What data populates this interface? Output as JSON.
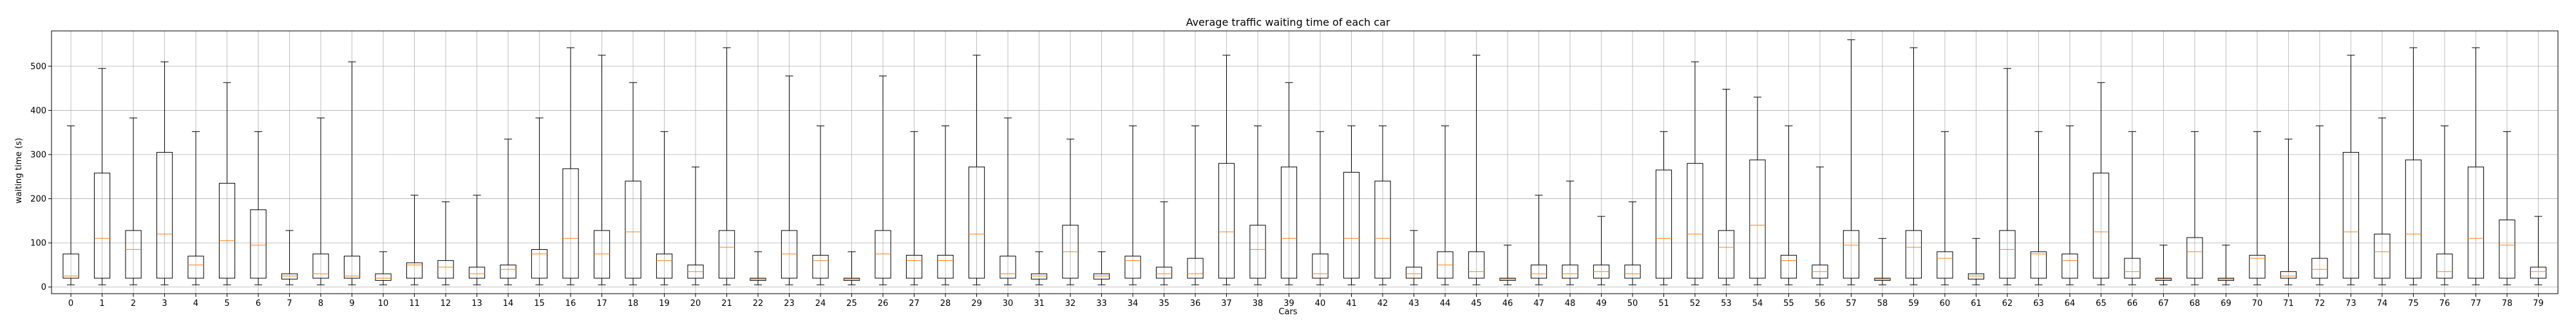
{
  "chart_data": {
    "type": "boxplot",
    "title": "Average traffic waiting time of each car",
    "xlabel": "Cars",
    "ylabel": "waiting time (s)",
    "ylim": [
      -15,
      580
    ],
    "yticks": [
      0,
      100,
      200,
      300,
      400,
      500
    ],
    "grid": true,
    "colors": {
      "box": "#000000",
      "median": "#ff7f0e",
      "grid": "#b0b0b0"
    },
    "boxes": [
      {
        "label": "0",
        "whislo": 5,
        "q1": 20,
        "med": 25,
        "q3": 75,
        "whishi": 365
      },
      {
        "label": "1",
        "whislo": 5,
        "q1": 20,
        "med": 110,
        "q3": 258,
        "whishi": 495
      },
      {
        "label": "2",
        "whislo": 5,
        "q1": 20,
        "med": 85,
        "q3": 128,
        "whishi": 383
      },
      {
        "label": "3",
        "whislo": 5,
        "q1": 20,
        "med": 120,
        "q3": 305,
        "whishi": 510
      },
      {
        "label": "4",
        "whislo": 5,
        "q1": 20,
        "med": 50,
        "q3": 70,
        "whishi": 352
      },
      {
        "label": "5",
        "whislo": 5,
        "q1": 20,
        "med": 105,
        "q3": 235,
        "whishi": 463
      },
      {
        "label": "6",
        "whislo": 5,
        "q1": 20,
        "med": 95,
        "q3": 175,
        "whishi": 352
      },
      {
        "label": "7",
        "whislo": 5,
        "q1": 18,
        "med": 25,
        "q3": 30,
        "whishi": 128
      },
      {
        "label": "8",
        "whislo": 5,
        "q1": 20,
        "med": 30,
        "q3": 75,
        "whishi": 383
      },
      {
        "label": "9",
        "whislo": 5,
        "q1": 20,
        "med": 25,
        "q3": 70,
        "whishi": 510
      },
      {
        "label": "10",
        "whislo": 5,
        "q1": 15,
        "med": 20,
        "q3": 30,
        "whishi": 80
      },
      {
        "label": "11",
        "whislo": 5,
        "q1": 20,
        "med": 50,
        "q3": 55,
        "whishi": 208
      },
      {
        "label": "12",
        "whislo": 5,
        "q1": 20,
        "med": 45,
        "q3": 60,
        "whishi": 193
      },
      {
        "label": "13",
        "whislo": 5,
        "q1": 20,
        "med": 30,
        "q3": 45,
        "whishi": 208
      },
      {
        "label": "14",
        "whislo": 5,
        "q1": 20,
        "med": 40,
        "q3": 50,
        "whishi": 335
      },
      {
        "label": "15",
        "whislo": 5,
        "q1": 20,
        "med": 75,
        "q3": 85,
        "whishi": 383
      },
      {
        "label": "16",
        "whislo": 5,
        "q1": 20,
        "med": 110,
        "q3": 268,
        "whishi": 542
      },
      {
        "label": "17",
        "whislo": 5,
        "q1": 20,
        "med": 75,
        "q3": 128,
        "whishi": 525
      },
      {
        "label": "18",
        "whislo": 5,
        "q1": 20,
        "med": 125,
        "q3": 240,
        "whishi": 463
      },
      {
        "label": "19",
        "whislo": 5,
        "q1": 20,
        "med": 60,
        "q3": 75,
        "whishi": 352
      },
      {
        "label": "20",
        "whislo": 5,
        "q1": 20,
        "med": 35,
        "q3": 50,
        "whishi": 272
      },
      {
        "label": "21",
        "whislo": 5,
        "q1": 20,
        "med": 90,
        "q3": 128,
        "whishi": 542
      },
      {
        "label": "22",
        "whislo": 5,
        "q1": 15,
        "med": 18,
        "q3": 20,
        "whishi": 80
      },
      {
        "label": "23",
        "whislo": 5,
        "q1": 20,
        "med": 75,
        "q3": 128,
        "whishi": 478
      },
      {
        "label": "24",
        "whislo": 5,
        "q1": 20,
        "med": 60,
        "q3": 72,
        "whishi": 365
      },
      {
        "label": "25",
        "whislo": 5,
        "q1": 15,
        "med": 18,
        "q3": 20,
        "whishi": 80
      },
      {
        "label": "26",
        "whislo": 5,
        "q1": 20,
        "med": 75,
        "q3": 128,
        "whishi": 478
      },
      {
        "label": "27",
        "whislo": 5,
        "q1": 20,
        "med": 60,
        "q3": 72,
        "whishi": 352
      },
      {
        "label": "28",
        "whislo": 5,
        "q1": 20,
        "med": 60,
        "q3": 72,
        "whishi": 365
      },
      {
        "label": "29",
        "whislo": 5,
        "q1": 20,
        "med": 120,
        "q3": 272,
        "whishi": 525
      },
      {
        "label": "30",
        "whislo": 5,
        "q1": 20,
        "med": 30,
        "q3": 70,
        "whishi": 383
      },
      {
        "label": "31",
        "whislo": 5,
        "q1": 18,
        "med": 25,
        "q3": 30,
        "whishi": 80
      },
      {
        "label": "32",
        "whislo": 5,
        "q1": 20,
        "med": 80,
        "q3": 140,
        "whishi": 335
      },
      {
        "label": "33",
        "whislo": 5,
        "q1": 18,
        "med": 25,
        "q3": 30,
        "whishi": 80
      },
      {
        "label": "34",
        "whislo": 5,
        "q1": 20,
        "med": 60,
        "q3": 70,
        "whishi": 365
      },
      {
        "label": "35",
        "whislo": 5,
        "q1": 20,
        "med": 30,
        "q3": 45,
        "whishi": 193
      },
      {
        "label": "36",
        "whislo": 5,
        "q1": 20,
        "med": 30,
        "q3": 65,
        "whishi": 365
      },
      {
        "label": "37",
        "whislo": 5,
        "q1": 20,
        "med": 125,
        "q3": 280,
        "whishi": 525
      },
      {
        "label": "38",
        "whislo": 5,
        "q1": 20,
        "med": 85,
        "q3": 140,
        "whishi": 365
      },
      {
        "label": "39",
        "whislo": 5,
        "q1": 20,
        "med": 110,
        "q3": 272,
        "whishi": 463
      },
      {
        "label": "40",
        "whislo": 5,
        "q1": 20,
        "med": 30,
        "q3": 75,
        "whishi": 352
      },
      {
        "label": "41",
        "whislo": 5,
        "q1": 20,
        "med": 110,
        "q3": 260,
        "whishi": 365
      },
      {
        "label": "42",
        "whislo": 5,
        "q1": 20,
        "med": 110,
        "q3": 240,
        "whishi": 365
      },
      {
        "label": "43",
        "whislo": 5,
        "q1": 20,
        "med": 30,
        "q3": 45,
        "whishi": 128
      },
      {
        "label": "44",
        "whislo": 5,
        "q1": 20,
        "med": 50,
        "q3": 80,
        "whishi": 365
      },
      {
        "label": "45",
        "whislo": 5,
        "q1": 20,
        "med": 35,
        "q3": 80,
        "whishi": 525
      },
      {
        "label": "46",
        "whislo": 5,
        "q1": 15,
        "med": 18,
        "q3": 20,
        "whishi": 95
      },
      {
        "label": "47",
        "whislo": 5,
        "q1": 20,
        "med": 30,
        "q3": 50,
        "whishi": 208
      },
      {
        "label": "48",
        "whislo": 5,
        "q1": 20,
        "med": 30,
        "q3": 50,
        "whishi": 240
      },
      {
        "label": "49",
        "whislo": 5,
        "q1": 20,
        "med": 35,
        "q3": 50,
        "whishi": 160
      },
      {
        "label": "50",
        "whislo": 5,
        "q1": 20,
        "med": 30,
        "q3": 50,
        "whishi": 193
      },
      {
        "label": "51",
        "whislo": 5,
        "q1": 20,
        "med": 110,
        "q3": 265,
        "whishi": 352
      },
      {
        "label": "52",
        "whislo": 5,
        "q1": 20,
        "med": 120,
        "q3": 280,
        "whishi": 510
      },
      {
        "label": "53",
        "whislo": 5,
        "q1": 20,
        "med": 90,
        "q3": 128,
        "whishi": 448
      },
      {
        "label": "54",
        "whislo": 5,
        "q1": 20,
        "med": 140,
        "q3": 288,
        "whishi": 430
      },
      {
        "label": "55",
        "whislo": 5,
        "q1": 20,
        "med": 60,
        "q3": 72,
        "whishi": 365
      },
      {
        "label": "56",
        "whislo": 5,
        "q1": 20,
        "med": 35,
        "q3": 50,
        "whishi": 272
      },
      {
        "label": "57",
        "whislo": 5,
        "q1": 20,
        "med": 95,
        "q3": 128,
        "whishi": 560
      },
      {
        "label": "58",
        "whislo": 5,
        "q1": 15,
        "med": 18,
        "q3": 20,
        "whishi": 110
      },
      {
        "label": "59",
        "whislo": 5,
        "q1": 20,
        "med": 90,
        "q3": 128,
        "whishi": 542
      },
      {
        "label": "60",
        "whislo": 5,
        "q1": 20,
        "med": 65,
        "q3": 80,
        "whishi": 352
      },
      {
        "label": "61",
        "whislo": 5,
        "q1": 18,
        "med": 25,
        "q3": 30,
        "whishi": 110
      },
      {
        "label": "62",
        "whislo": 5,
        "q1": 20,
        "med": 85,
        "q3": 128,
        "whishi": 495
      },
      {
        "label": "63",
        "whislo": 5,
        "q1": 20,
        "med": 75,
        "q3": 80,
        "whishi": 352
      },
      {
        "label": "64",
        "whislo": 5,
        "q1": 20,
        "med": 60,
        "q3": 75,
        "whishi": 365
      },
      {
        "label": "65",
        "whislo": 5,
        "q1": 20,
        "med": 125,
        "q3": 258,
        "whishi": 463
      },
      {
        "label": "66",
        "whislo": 5,
        "q1": 20,
        "med": 35,
        "q3": 65,
        "whishi": 352
      },
      {
        "label": "67",
        "whislo": 5,
        "q1": 15,
        "med": 18,
        "q3": 20,
        "whishi": 95
      },
      {
        "label": "68",
        "whislo": 5,
        "q1": 20,
        "med": 80,
        "q3": 112,
        "whishi": 352
      },
      {
        "label": "69",
        "whislo": 5,
        "q1": 15,
        "med": 18,
        "q3": 20,
        "whishi": 95
      },
      {
        "label": "70",
        "whislo": 5,
        "q1": 20,
        "med": 65,
        "q3": 72,
        "whishi": 352
      },
      {
        "label": "71",
        "whislo": 5,
        "q1": 20,
        "med": 25,
        "q3": 35,
        "whishi": 335
      },
      {
        "label": "72",
        "whislo": 5,
        "q1": 20,
        "med": 40,
        "q3": 65,
        "whishi": 365
      },
      {
        "label": "73",
        "whislo": 5,
        "q1": 20,
        "med": 125,
        "q3": 305,
        "whishi": 525
      },
      {
        "label": "74",
        "whislo": 5,
        "q1": 20,
        "med": 80,
        "q3": 120,
        "whishi": 383
      },
      {
        "label": "75",
        "whislo": 5,
        "q1": 20,
        "med": 120,
        "q3": 288,
        "whishi": 542
      },
      {
        "label": "76",
        "whislo": 5,
        "q1": 20,
        "med": 35,
        "q3": 75,
        "whishi": 365
      },
      {
        "label": "77",
        "whislo": 5,
        "q1": 20,
        "med": 110,
        "q3": 272,
        "whishi": 542
      },
      {
        "label": "78",
        "whislo": 5,
        "q1": 20,
        "med": 95,
        "q3": 152,
        "whishi": 352
      },
      {
        "label": "79",
        "whislo": 5,
        "q1": 20,
        "med": 35,
        "q3": 45,
        "whishi": 160
      }
    ]
  }
}
